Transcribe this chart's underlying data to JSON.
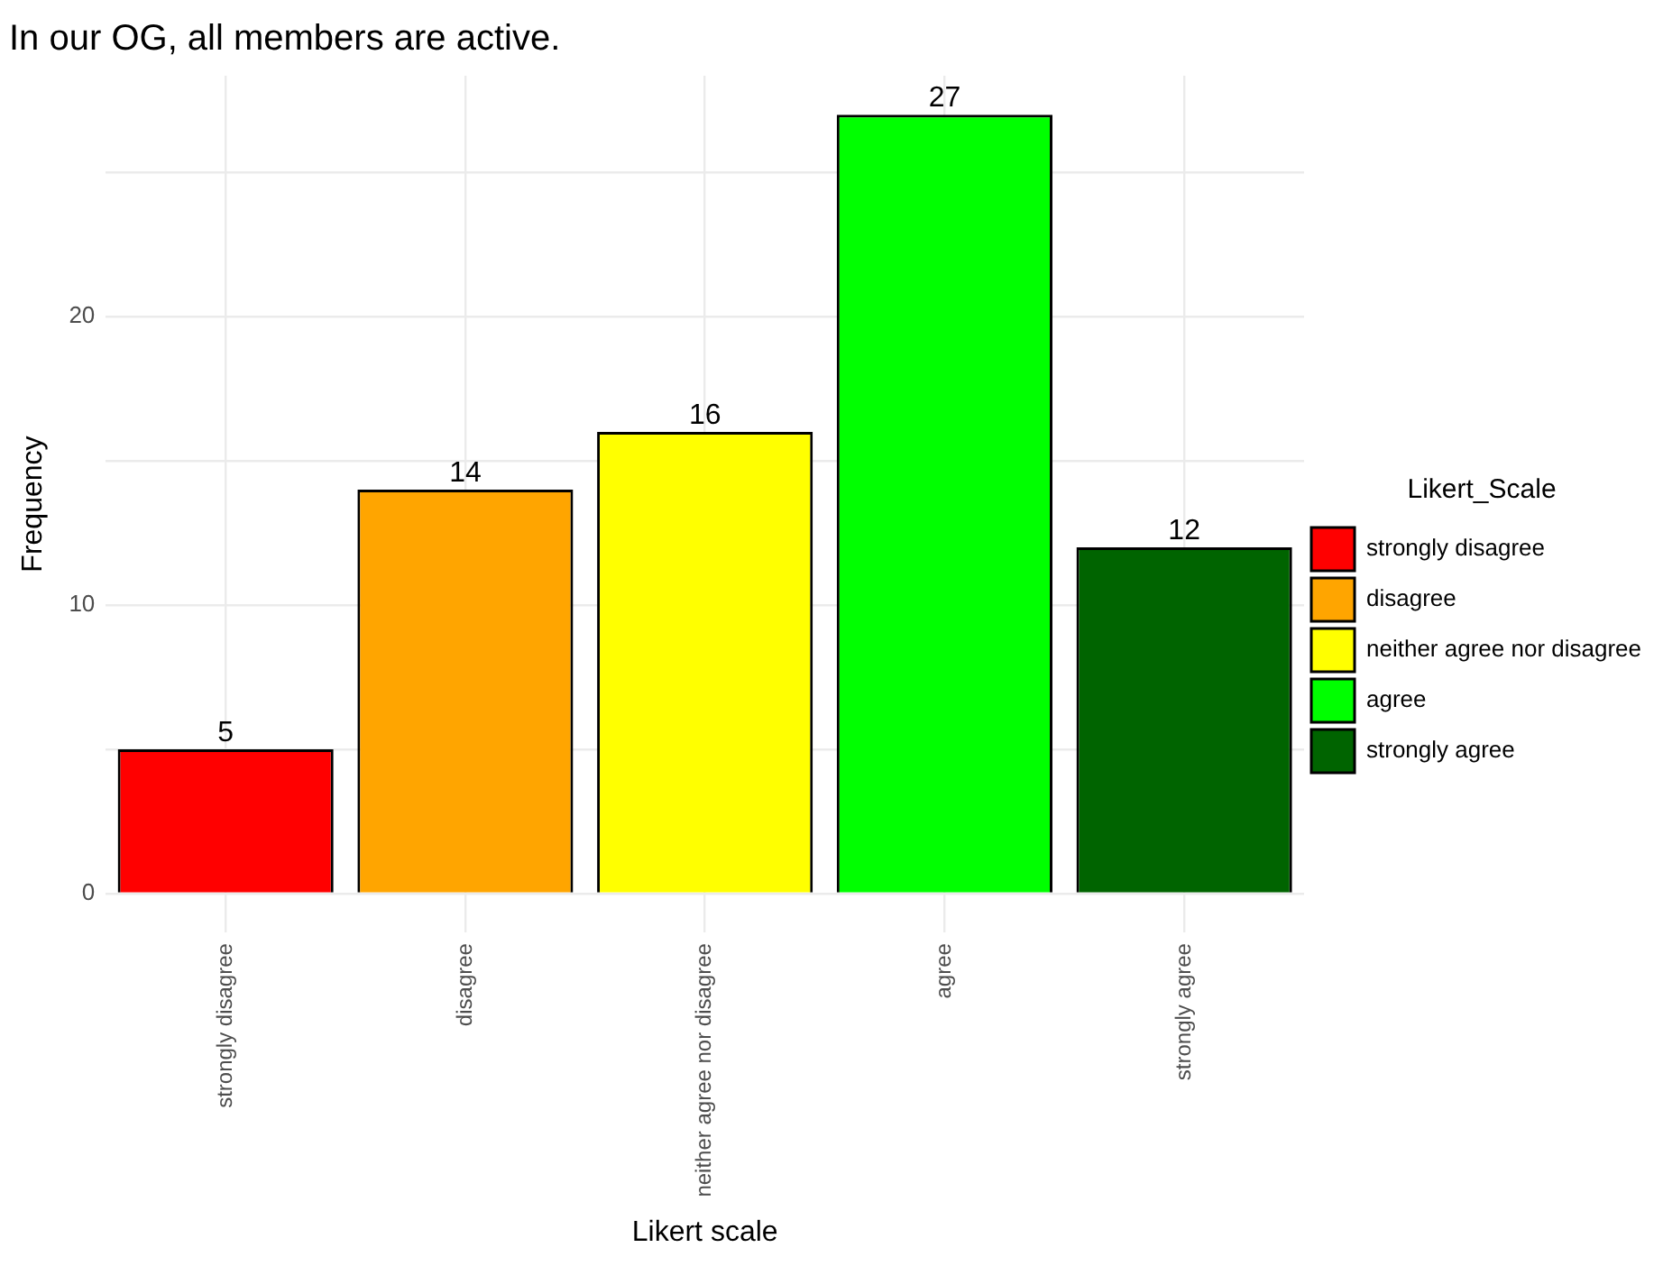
{
  "chart_data": {
    "type": "bar",
    "title": "In our OG, all members are active.",
    "xlabel": "Likert scale",
    "ylabel": "Frequency",
    "legend_title": "Likert_Scale",
    "categories": [
      "strongly disagree",
      "disagree",
      "neither agree nor disagree",
      "agree",
      "strongly agree"
    ],
    "series": [
      {
        "name": "strongly disagree",
        "color": "#ff0000",
        "values": [
          5,
          null,
          null,
          null,
          null
        ]
      },
      {
        "name": "disagree",
        "color": "#ffa500",
        "values": [
          null,
          14,
          null,
          null,
          null
        ]
      },
      {
        "name": "neither agree nor disagree",
        "color": "#ffff00",
        "values": [
          null,
          null,
          16,
          null,
          null
        ]
      },
      {
        "name": "agree",
        "color": "#00ff00",
        "values": [
          null,
          null,
          null,
          27,
          null
        ]
      },
      {
        "name": "strongly agree",
        "color": "#006400",
        "values": [
          null,
          null,
          null,
          null,
          12
        ]
      }
    ],
    "ylim": [
      -1.35,
      28.35
    ],
    "yticks": [
      0,
      {
        "value": 5,
        "label": null
      },
      10,
      {
        "value": 15,
        "label": null
      },
      20,
      {
        "value": 25,
        "label": null
      }
    ],
    "grid": true,
    "legend": "right",
    "data_labels": true
  }
}
